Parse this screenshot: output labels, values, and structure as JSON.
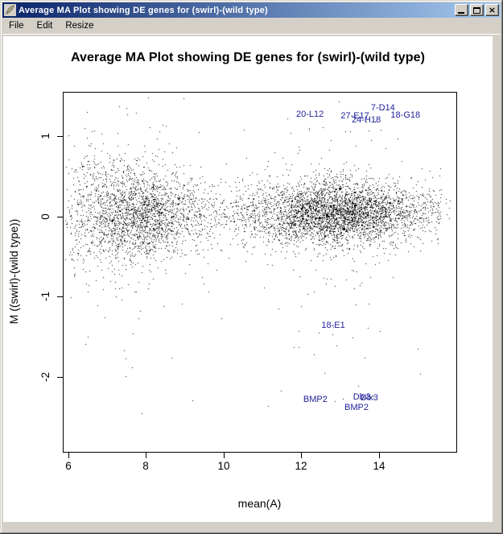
{
  "window": {
    "title": "Average MA Plot showing DE genes for (swirl)-(wild type)",
    "close_glyph": "x"
  },
  "menu": {
    "items": [
      "File",
      "Edit",
      "Resize"
    ]
  },
  "colors": {
    "titlebar_gradient_left": "#0A246A",
    "titlebar_gradient_right": "#A6CAF0",
    "frame": "#D4D0C8",
    "point": "#000000",
    "gene_label": "#22229C"
  },
  "chart_data": {
    "type": "scatter",
    "title": "Average MA Plot showing DE genes for (swirl)-(wild type)",
    "xlabel": "mean(A)",
    "ylabel": "M ((swirl)-(wild type))",
    "x_ticks": [
      6,
      8,
      10,
      12,
      14
    ],
    "y_ticks": [
      -2,
      -1,
      0,
      1
    ],
    "xlim": [
      5.855,
      15.99
    ],
    "ylim": [
      -2.93,
      1.55
    ],
    "grid": false,
    "legend": "none",
    "point_style": "1px-dot",
    "labeled_points": [
      {
        "label": "20-L12",
        "a": 12.22,
        "m": 1.27
      },
      {
        "label": "27-E17",
        "a": 13.38,
        "m": 1.25
      },
      {
        "label": "7-D14",
        "a": 14.1,
        "m": 1.35
      },
      {
        "label": "24-H18",
        "a": 13.67,
        "m": 1.2
      },
      {
        "label": "18-G18",
        "a": 14.68,
        "m": 1.26
      },
      {
        "label": "18-E1",
        "a": 12.82,
        "m": -1.36
      },
      {
        "label": "BMP2",
        "a": 12.36,
        "m": -2.28
      },
      {
        "label": "Dlx3",
        "a": 13.56,
        "m": -2.25
      },
      {
        "label": "Dlx3",
        "a": 13.75,
        "m": -2.26
      },
      {
        "label": "BMP2",
        "a": 13.42,
        "m": -2.38
      }
    ],
    "cloud": {
      "n": 6500,
      "seed": 42,
      "center_m": 0.045,
      "x_modes": [
        {
          "weight": 0.32,
          "mean": 7.7,
          "sd": 0.85
        },
        {
          "weight": 0.5,
          "mean": 12.9,
          "sd": 1.05
        },
        {
          "weight": 0.18,
          "uniform": [
            6.0,
            15.6
          ]
        }
      ],
      "m_sd_base": 0.17,
      "m_sd_low_a_boost": 0.25,
      "outlier_frac": 0.07,
      "outlier_sd_mult": 2.6,
      "deep_outlier_frac": 0.008
    }
  }
}
